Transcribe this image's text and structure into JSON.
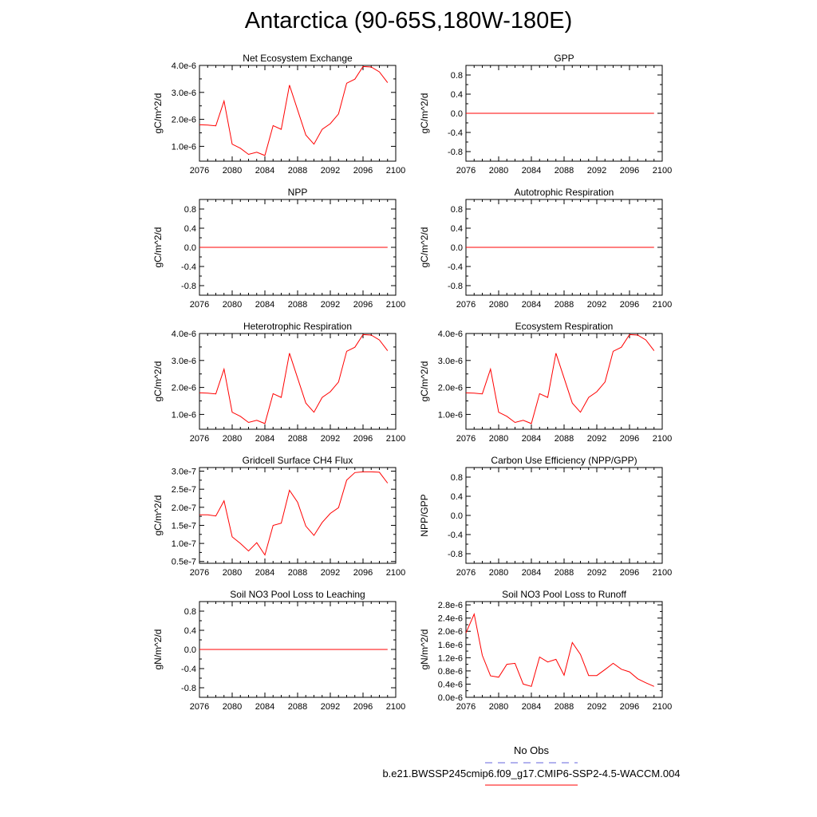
{
  "title": "Antarctica (90-65S,180W-180E)",
  "legend": {
    "obs_label": "No Obs",
    "case_label": "b.e21.BWSSP245cmip6.f09_g17.CMIP6-SSP2-4.5-WACCM.004",
    "obs_color": "#6666dd",
    "case_color": "#ff0000"
  },
  "chart_data": [
    {
      "type": "line",
      "title": "Net Ecosystem Exchange",
      "ylabel": "gC/m^2/d",
      "xlim": [
        2076,
        2100
      ],
      "ylim": [
        4.5e-07,
        4e-06
      ],
      "xticks": [
        2076,
        2080,
        2084,
        2088,
        2092,
        2096,
        2100
      ],
      "yticks": [
        {
          "v": 1e-06,
          "label": "1.0e-6"
        },
        {
          "v": 2e-06,
          "label": "2.0e-6"
        },
        {
          "v": 3e-06,
          "label": "3.0e-6"
        },
        {
          "v": 4e-06,
          "label": "4.0e-6"
        }
      ],
      "series": [
        {
          "x": [
            2076,
            2077,
            2078,
            2079,
            2080,
            2081,
            2082,
            2083,
            2084,
            2085,
            2086,
            2087,
            2088,
            2089,
            2090,
            2091,
            2092,
            2093,
            2094,
            2095,
            2096,
            2097,
            2098,
            2099
          ],
          "values": [
            1.8e-06,
            1.79e-06,
            1.76e-06,
            2.68e-06,
            1.08e-06,
            9.3e-07,
            7e-07,
            7.8e-07,
            6.6e-07,
            1.77e-06,
            1.63e-06,
            3.27e-06,
            2.35e-06,
            1.42e-06,
            1.08e-06,
            1.63e-06,
            1.84e-06,
            2.2e-06,
            3.34e-06,
            3.49e-06,
            3.96e-06,
            3.94e-06,
            3.76e-06,
            3.36e-06
          ]
        }
      ]
    },
    {
      "type": "line",
      "title": "GPP",
      "ylabel": "gC/m^2/d",
      "xlim": [
        2076,
        2100
      ],
      "ylim": [
        -1.0,
        1.0
      ],
      "xticks": [
        2076,
        2080,
        2084,
        2088,
        2092,
        2096,
        2100
      ],
      "yticks": [
        {
          "v": 0.8,
          "label": "0.8"
        },
        {
          "v": 0.4,
          "label": "0.4"
        },
        {
          "v": 0.0,
          "label": "0.0"
        },
        {
          "v": -0.4,
          "label": "-0.4"
        },
        {
          "v": -0.8,
          "label": "-0.8"
        }
      ],
      "series": [
        {
          "x": [
            2076,
            2099
          ],
          "values": [
            0,
            0
          ]
        }
      ]
    },
    {
      "type": "line",
      "title": "NPP",
      "ylabel": "gC/m^2/d",
      "xlim": [
        2076,
        2100
      ],
      "ylim": [
        -1.0,
        1.0
      ],
      "xticks": [
        2076,
        2080,
        2084,
        2088,
        2092,
        2096,
        2100
      ],
      "yticks": [
        {
          "v": 0.8,
          "label": "0.8"
        },
        {
          "v": 0.4,
          "label": "0.4"
        },
        {
          "v": 0.0,
          "label": "0.0"
        },
        {
          "v": -0.4,
          "label": "-0.4"
        },
        {
          "v": -0.8,
          "label": "-0.8"
        }
      ],
      "series": [
        {
          "x": [
            2076,
            2099
          ],
          "values": [
            0,
            0
          ]
        }
      ]
    },
    {
      "type": "line",
      "title": "Autotrophic Respiration",
      "ylabel": "gC/m^2/d",
      "xlim": [
        2076,
        2100
      ],
      "ylim": [
        -1.0,
        1.0
      ],
      "xticks": [
        2076,
        2080,
        2084,
        2088,
        2092,
        2096,
        2100
      ],
      "yticks": [
        {
          "v": 0.8,
          "label": "0.8"
        },
        {
          "v": 0.4,
          "label": "0.4"
        },
        {
          "v": 0.0,
          "label": "0.0"
        },
        {
          "v": -0.4,
          "label": "-0.4"
        },
        {
          "v": -0.8,
          "label": "-0.8"
        }
      ],
      "series": [
        {
          "x": [
            2076,
            2099
          ],
          "values": [
            0,
            0
          ]
        }
      ]
    },
    {
      "type": "line",
      "title": "Heterotrophic Respiration",
      "ylabel": "gC/m^2/d",
      "xlim": [
        2076,
        2100
      ],
      "ylim": [
        4.5e-07,
        4e-06
      ],
      "xticks": [
        2076,
        2080,
        2084,
        2088,
        2092,
        2096,
        2100
      ],
      "yticks": [
        {
          "v": 1e-06,
          "label": "1.0e-6"
        },
        {
          "v": 2e-06,
          "label": "2.0e-6"
        },
        {
          "v": 3e-06,
          "label": "3.0e-6"
        },
        {
          "v": 4e-06,
          "label": "4.0e-6"
        }
      ],
      "series": [
        {
          "x": [
            2076,
            2077,
            2078,
            2079,
            2080,
            2081,
            2082,
            2083,
            2084,
            2085,
            2086,
            2087,
            2088,
            2089,
            2090,
            2091,
            2092,
            2093,
            2094,
            2095,
            2096,
            2097,
            2098,
            2099
          ],
          "values": [
            1.8e-06,
            1.79e-06,
            1.76e-06,
            2.68e-06,
            1.08e-06,
            9.3e-07,
            7e-07,
            7.8e-07,
            6.6e-07,
            1.77e-06,
            1.63e-06,
            3.27e-06,
            2.35e-06,
            1.42e-06,
            1.08e-06,
            1.63e-06,
            1.84e-06,
            2.2e-06,
            3.34e-06,
            3.49e-06,
            3.96e-06,
            3.94e-06,
            3.76e-06,
            3.36e-06
          ]
        }
      ]
    },
    {
      "type": "line",
      "title": "Ecosystem Respiration",
      "ylabel": "gC/m^2/d",
      "xlim": [
        2076,
        2100
      ],
      "ylim": [
        4.5e-07,
        4e-06
      ],
      "xticks": [
        2076,
        2080,
        2084,
        2088,
        2092,
        2096,
        2100
      ],
      "yticks": [
        {
          "v": 1e-06,
          "label": "1.0e-6"
        },
        {
          "v": 2e-06,
          "label": "2.0e-6"
        },
        {
          "v": 3e-06,
          "label": "3.0e-6"
        },
        {
          "v": 4e-06,
          "label": "4.0e-6"
        }
      ],
      "series": [
        {
          "x": [
            2076,
            2077,
            2078,
            2079,
            2080,
            2081,
            2082,
            2083,
            2084,
            2085,
            2086,
            2087,
            2088,
            2089,
            2090,
            2091,
            2092,
            2093,
            2094,
            2095,
            2096,
            2097,
            2098,
            2099
          ],
          "values": [
            1.8e-06,
            1.79e-06,
            1.76e-06,
            2.68e-06,
            1.08e-06,
            9.3e-07,
            7e-07,
            7.8e-07,
            6.6e-07,
            1.77e-06,
            1.63e-06,
            3.27e-06,
            2.35e-06,
            1.42e-06,
            1.08e-06,
            1.63e-06,
            1.84e-06,
            2.2e-06,
            3.34e-06,
            3.49e-06,
            3.96e-06,
            3.94e-06,
            3.76e-06,
            3.36e-06
          ]
        }
      ]
    },
    {
      "type": "line",
      "title": "Gridcell Surface CH4 Flux",
      "ylabel": "gC/m^2/d",
      "xlim": [
        2076,
        2100
      ],
      "ylim": [
        4.5e-08,
        3.1e-07
      ],
      "xticks": [
        2076,
        2080,
        2084,
        2088,
        2092,
        2096,
        2100
      ],
      "yticks": [
        {
          "v": 5e-08,
          "label": "0.5e-7"
        },
        {
          "v": 1e-07,
          "label": "1.0e-7"
        },
        {
          "v": 1.5e-07,
          "label": "1.5e-7"
        },
        {
          "v": 2e-07,
          "label": "2.0e-7"
        },
        {
          "v": 2.5e-07,
          "label": "2.5e-7"
        },
        {
          "v": 3e-07,
          "label": "3.0e-7"
        }
      ],
      "series": [
        {
          "x": [
            2076,
            2077,
            2078,
            2079,
            2080,
            2081,
            2082,
            2083,
            2084,
            2085,
            2086,
            2087,
            2088,
            2089,
            2090,
            2091,
            2092,
            2093,
            2094,
            2095,
            2096,
            2097,
            2098,
            2099
          ],
          "values": [
            1.79e-07,
            1.79e-07,
            1.76e-07,
            2.18e-07,
            1.18e-07,
            1e-07,
            7.9e-08,
            1.02e-07,
            6.8e-08,
            1.5e-07,
            1.56e-07,
            2.47e-07,
            2.14e-07,
            1.48e-07,
            1.22e-07,
            1.58e-07,
            1.83e-07,
            1.99e-07,
            2.75e-07,
            2.96e-07,
            2.98e-07,
            2.98e-07,
            2.97e-07,
            2.67e-07
          ]
        }
      ]
    },
    {
      "type": "line",
      "title": "Carbon Use Efficiency (NPP/GPP)",
      "ylabel": "NPP/GPP",
      "xlim": [
        2076,
        2100
      ],
      "ylim": [
        -1.0,
        1.0
      ],
      "xticks": [
        2076,
        2080,
        2084,
        2088,
        2092,
        2096,
        2100
      ],
      "yticks": [
        {
          "v": 0.8,
          "label": "0.8"
        },
        {
          "v": 0.4,
          "label": "0.4"
        },
        {
          "v": 0.0,
          "label": "0.0"
        },
        {
          "v": -0.4,
          "label": "-0.4"
        },
        {
          "v": -0.8,
          "label": "-0.8"
        }
      ],
      "series": []
    },
    {
      "type": "line",
      "title": "Soil NO3 Pool Loss to Leaching",
      "ylabel": "gN/m^2/d",
      "xlim": [
        2076,
        2100
      ],
      "ylim": [
        -1.0,
        1.0
      ],
      "xticks": [
        2076,
        2080,
        2084,
        2088,
        2092,
        2096,
        2100
      ],
      "yticks": [
        {
          "v": 0.8,
          "label": "0.8"
        },
        {
          "v": 0.4,
          "label": "0.4"
        },
        {
          "v": 0.0,
          "label": "0.0"
        },
        {
          "v": -0.4,
          "label": "-0.4"
        },
        {
          "v": -0.8,
          "label": "-0.8"
        }
      ],
      "series": [
        {
          "x": [
            2076,
            2099
          ],
          "values": [
            0,
            0
          ]
        }
      ]
    },
    {
      "type": "line",
      "title": "Soil NO3 Pool Loss to Runoff",
      "ylabel": "gN/m^2/d",
      "xlim": [
        2076,
        2100
      ],
      "ylim": [
        0.0,
        2.9e-06
      ],
      "xticks": [
        2076,
        2080,
        2084,
        2088,
        2092,
        2096,
        2100
      ],
      "yticks": [
        {
          "v": 0,
          "label": "0.0e-6"
        },
        {
          "v": 4e-07,
          "label": "0.4e-6"
        },
        {
          "v": 8e-07,
          "label": "0.8e-6"
        },
        {
          "v": 1.2e-06,
          "label": "1.2e-6"
        },
        {
          "v": 1.6e-06,
          "label": "1.6e-6"
        },
        {
          "v": 2e-06,
          "label": "2.0e-6"
        },
        {
          "v": 2.4e-06,
          "label": "2.4e-6"
        },
        {
          "v": 2.8e-06,
          "label": "2.8e-6"
        }
      ],
      "series": [
        {
          "x": [
            2076,
            2077,
            2078,
            2079,
            2080,
            2081,
            2082,
            2083,
            2084,
            2085,
            2086,
            2087,
            2088,
            2089,
            2090,
            2091,
            2092,
            2093,
            2094,
            2095,
            2096,
            2097,
            2098,
            2099
          ],
          "values": [
            1.95e-06,
            2.52e-06,
            1.27e-06,
            6.5e-07,
            6.1e-07,
            1e-06,
            1.03e-06,
            4e-07,
            3.3e-07,
            1.22e-06,
            1.07e-06,
            1.15e-06,
            6.7e-07,
            1.66e-06,
            1.3e-06,
            6.6e-07,
            6.6e-07,
            8.4e-07,
            1.03e-06,
            8.5e-07,
            7.7e-07,
            5.6e-07,
            4.4e-07,
            3.3e-07
          ]
        }
      ]
    }
  ]
}
